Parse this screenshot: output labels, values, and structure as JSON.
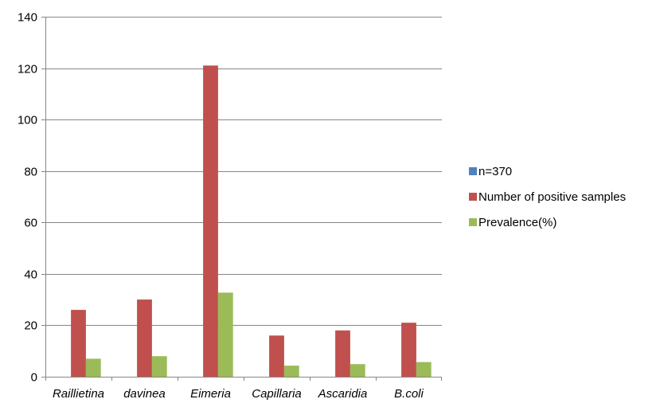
{
  "chart_data": {
    "type": "bar",
    "categories": [
      "Raillietina",
      "davinea",
      "Eimeria",
      "Capillaria",
      "Ascaridia",
      "B.coli"
    ],
    "series": [
      {
        "name": "n=370",
        "values": [
          0,
          0,
          0,
          0,
          0,
          0
        ],
        "color": "#4F81BD"
      },
      {
        "name": "Number of positive samples",
        "values": [
          26,
          30,
          121,
          16,
          18,
          21
        ],
        "color": "#C0504D"
      },
      {
        "name": "Prevalence(%)",
        "values": [
          7,
          8,
          32.7,
          4.3,
          4.9,
          5.7
        ],
        "color": "#9BBB59"
      }
    ],
    "ylim": [
      0,
      140
    ],
    "yticks": [
      0,
      20,
      40,
      60,
      80,
      100,
      120,
      140
    ],
    "grid": true,
    "legend_position": "right",
    "title": "",
    "xlabel": "",
    "ylabel": ""
  }
}
